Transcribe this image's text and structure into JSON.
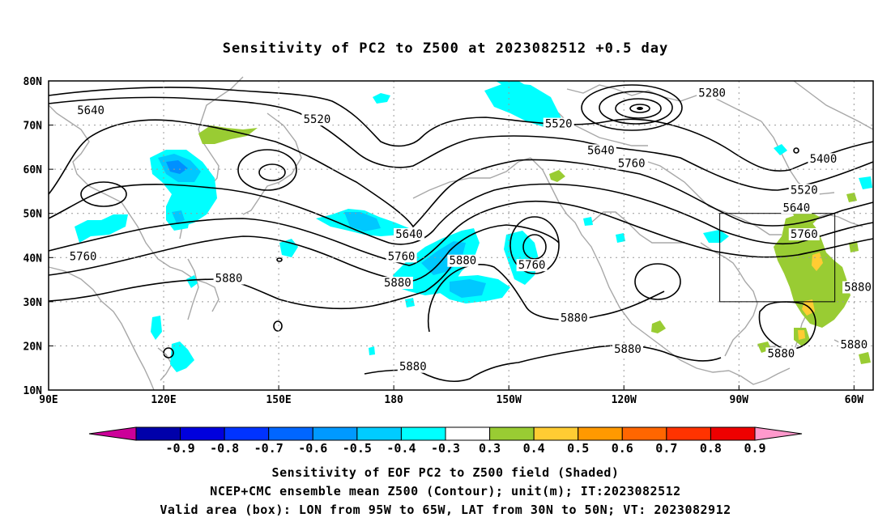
{
  "title": "Sensitivity of PC2 to Z500 at 2023082512 +0.5 day",
  "map": {
    "lat_labels": [
      "80N",
      "70N",
      "60N",
      "50N",
      "40N",
      "30N",
      "20N",
      "10N"
    ],
    "lon_labels": [
      "90E",
      "120E",
      "150E",
      "180",
      "150W",
      "120W",
      "90W",
      "60W"
    ],
    "lat_range": [
      10,
      80
    ],
    "lon_range_east": [
      90,
      305
    ],
    "colors": {
      "coast": "#a8a8a8",
      "contour": "#000000",
      "cyan": "#00ffff",
      "light_blue": "#00c8ff",
      "mid_blue": "#0090ff",
      "green": "#99cc33",
      "yellow": "#ffcc33",
      "orange": "#ff9900"
    },
    "contour_labels": [
      {
        "text": "5280",
        "lon": 263,
        "lat": 77
      },
      {
        "text": "5400",
        "lon": 292,
        "lat": 62
      },
      {
        "text": "5520",
        "lon": 160,
        "lat": 71
      },
      {
        "text": "5520",
        "lon": 223,
        "lat": 70
      },
      {
        "text": "5520",
        "lon": 287,
        "lat": 55
      },
      {
        "text": "5640",
        "lon": 101,
        "lat": 73
      },
      {
        "text": "5640",
        "lon": 234,
        "lat": 64
      },
      {
        "text": "5640",
        "lon": 285,
        "lat": 51
      },
      {
        "text": "5640",
        "lon": 184,
        "lat": 45
      },
      {
        "text": "5760",
        "lon": 242,
        "lat": 61
      },
      {
        "text": "5760",
        "lon": 287,
        "lat": 45
      },
      {
        "text": "5760",
        "lon": 182,
        "lat": 40
      },
      {
        "text": "5760",
        "lon": 99,
        "lat": 40
      },
      {
        "text": "5760",
        "lon": 216,
        "lat": 38
      },
      {
        "text": "5880",
        "lon": 198,
        "lat": 39
      },
      {
        "text": "5880",
        "lon": 181,
        "lat": 34
      },
      {
        "text": "5880",
        "lon": 137,
        "lat": 35
      },
      {
        "text": "5880",
        "lon": 227,
        "lat": 26
      },
      {
        "text": "5880",
        "lon": 241,
        "lat": 19
      },
      {
        "text": "5880",
        "lon": 281,
        "lat": 18
      },
      {
        "text": "5880",
        "lon": 301,
        "lat": 33
      },
      {
        "text": "5880",
        "lon": 300,
        "lat": 20
      },
      {
        "text": "5880",
        "lon": 185,
        "lat": 15
      }
    ],
    "box": {
      "lon_west": -95,
      "lon_east": -65,
      "lat_south": 30,
      "lat_north": 50
    }
  },
  "colorbar": {
    "labels": [
      "-0.9",
      "-0.8",
      "-0.7",
      "-0.6",
      "-0.5",
      "-0.4",
      "-0.3",
      "0.3",
      "0.4",
      "0.5",
      "0.6",
      "0.7",
      "0.8",
      "0.9"
    ],
    "colors": [
      "#cc0099",
      "#0000aa",
      "#0000dd",
      "#0033ff",
      "#0066ff",
      "#0099ff",
      "#00ccff",
      "#00ffff",
      "#ffffff",
      "#99cc33",
      "#ffcc33",
      "#ff9900",
      "#ff6600",
      "#ff3300",
      "#ee0000",
      "#ff99cc"
    ]
  },
  "captions": {
    "line1": "Sensitivity of EOF PC2 to Z500 field (Shaded)",
    "line2": "NCEP+CMC ensemble mean Z500 (Contour); unit(m); IT:2023082512",
    "line3": "Valid area (box): LON from 95W to 65W, LAT from 30N to 50N; VT: 2023082912"
  }
}
